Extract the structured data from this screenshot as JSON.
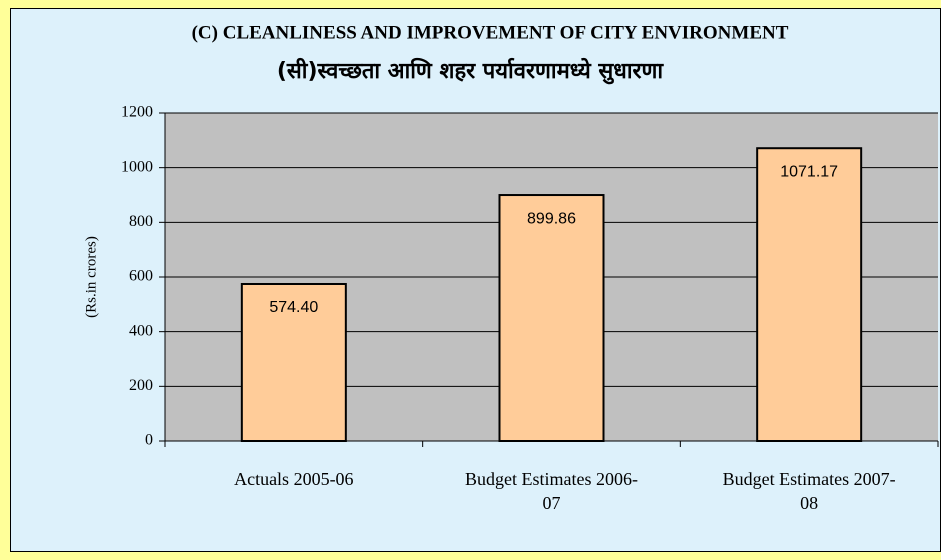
{
  "chart_data": {
    "type": "bar",
    "title": "(C) CLEANLINESS AND IMPROVEMENT OF CITY ENVIRONMENT",
    "subtitle": "(सी)स्वच्छता आणि शहर पर्यावरणामध्ये सुधारणा",
    "y_label": "(Rs.in crores)",
    "categories": [
      "Actuals 2005-06",
      "Budget Estimates 2006-07",
      "Budget Estimates 2007-08"
    ],
    "values": [
      574.4,
      899.86,
      1071.17
    ],
    "value_labels": [
      "574.40",
      "899.86",
      "1071.17"
    ],
    "color": "#ffcc99",
    "ylim": [
      0,
      1200
    ],
    "yticks": [
      0,
      200,
      400,
      600,
      800,
      1000,
      1200
    ],
    "grid": true
  }
}
